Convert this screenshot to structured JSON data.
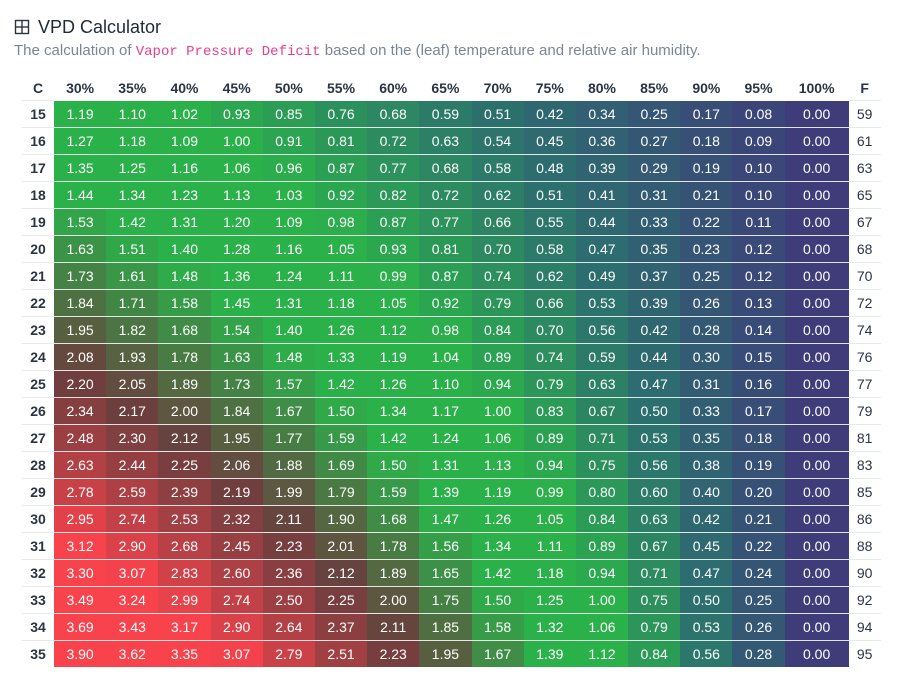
{
  "header": {
    "title": "VPD Calculator",
    "subtitle_before": "The calculation of ",
    "subtitle_code": "Vapor Pressure Deficit",
    "subtitle_after": " based on the (leaf) temperature and relative air humidity.",
    "icon": "grid-icon"
  },
  "table": {
    "corner_left": "C",
    "corner_right": "F",
    "humidity": [
      "30%",
      "35%",
      "40%",
      "45%",
      "50%",
      "55%",
      "60%",
      "65%",
      "70%",
      "75%",
      "80%",
      "85%",
      "90%",
      "95%",
      "100%"
    ],
    "rows": [
      {
        "c": "15",
        "f": "59",
        "v": [
          "1.19",
          "1.10",
          "1.02",
          "0.93",
          "0.85",
          "0.76",
          "0.68",
          "0.59",
          "0.51",
          "0.42",
          "0.34",
          "0.25",
          "0.17",
          "0.08",
          "0.00"
        ]
      },
      {
        "c": "16",
        "f": "61",
        "v": [
          "1.27",
          "1.18",
          "1.09",
          "1.00",
          "0.91",
          "0.81",
          "0.72",
          "0.63",
          "0.54",
          "0.45",
          "0.36",
          "0.27",
          "0.18",
          "0.09",
          "0.00"
        ]
      },
      {
        "c": "17",
        "f": "63",
        "v": [
          "1.35",
          "1.25",
          "1.16",
          "1.06",
          "0.96",
          "0.87",
          "0.77",
          "0.68",
          "0.58",
          "0.48",
          "0.39",
          "0.29",
          "0.19",
          "0.10",
          "0.00"
        ]
      },
      {
        "c": "18",
        "f": "65",
        "v": [
          "1.44",
          "1.34",
          "1.23",
          "1.13",
          "1.03",
          "0.92",
          "0.82",
          "0.72",
          "0.62",
          "0.51",
          "0.41",
          "0.31",
          "0.21",
          "0.10",
          "0.00"
        ]
      },
      {
        "c": "19",
        "f": "67",
        "v": [
          "1.53",
          "1.42",
          "1.31",
          "1.20",
          "1.09",
          "0.98",
          "0.87",
          "0.77",
          "0.66",
          "0.55",
          "0.44",
          "0.33",
          "0.22",
          "0.11",
          "0.00"
        ]
      },
      {
        "c": "20",
        "f": "68",
        "v": [
          "1.63",
          "1.51",
          "1.40",
          "1.28",
          "1.16",
          "1.05",
          "0.93",
          "0.81",
          "0.70",
          "0.58",
          "0.47",
          "0.35",
          "0.23",
          "0.12",
          "0.00"
        ]
      },
      {
        "c": "21",
        "f": "70",
        "v": [
          "1.73",
          "1.61",
          "1.48",
          "1.36",
          "1.24",
          "1.11",
          "0.99",
          "0.87",
          "0.74",
          "0.62",
          "0.49",
          "0.37",
          "0.25",
          "0.12",
          "0.00"
        ]
      },
      {
        "c": "22",
        "f": "72",
        "v": [
          "1.84",
          "1.71",
          "1.58",
          "1.45",
          "1.31",
          "1.18",
          "1.05",
          "0.92",
          "0.79",
          "0.66",
          "0.53",
          "0.39",
          "0.26",
          "0.13",
          "0.00"
        ]
      },
      {
        "c": "23",
        "f": "74",
        "v": [
          "1.95",
          "1.82",
          "1.68",
          "1.54",
          "1.40",
          "1.26",
          "1.12",
          "0.98",
          "0.84",
          "0.70",
          "0.56",
          "0.42",
          "0.28",
          "0.14",
          "0.00"
        ]
      },
      {
        "c": "24",
        "f": "76",
        "v": [
          "2.08",
          "1.93",
          "1.78",
          "1.63",
          "1.48",
          "1.33",
          "1.19",
          "1.04",
          "0.89",
          "0.74",
          "0.59",
          "0.44",
          "0.30",
          "0.15",
          "0.00"
        ]
      },
      {
        "c": "25",
        "f": "77",
        "v": [
          "2.20",
          "2.05",
          "1.89",
          "1.73",
          "1.57",
          "1.42",
          "1.26",
          "1.10",
          "0.94",
          "0.79",
          "0.63",
          "0.47",
          "0.31",
          "0.16",
          "0.00"
        ]
      },
      {
        "c": "26",
        "f": "79",
        "v": [
          "2.34",
          "2.17",
          "2.00",
          "1.84",
          "1.67",
          "1.50",
          "1.34",
          "1.17",
          "1.00",
          "0.83",
          "0.67",
          "0.50",
          "0.33",
          "0.17",
          "0.00"
        ]
      },
      {
        "c": "27",
        "f": "81",
        "v": [
          "2.48",
          "2.30",
          "2.12",
          "1.95",
          "1.77",
          "1.59",
          "1.42",
          "1.24",
          "1.06",
          "0.89",
          "0.71",
          "0.53",
          "0.35",
          "0.18",
          "0.00"
        ]
      },
      {
        "c": "28",
        "f": "83",
        "v": [
          "2.63",
          "2.44",
          "2.25",
          "2.06",
          "1.88",
          "1.69",
          "1.50",
          "1.31",
          "1.13",
          "0.94",
          "0.75",
          "0.56",
          "0.38",
          "0.19",
          "0.00"
        ]
      },
      {
        "c": "29",
        "f": "85",
        "v": [
          "2.78",
          "2.59",
          "2.39",
          "2.19",
          "1.99",
          "1.79",
          "1.59",
          "1.39",
          "1.19",
          "0.99",
          "0.80",
          "0.60",
          "0.40",
          "0.20",
          "0.00"
        ]
      },
      {
        "c": "30",
        "f": "86",
        "v": [
          "2.95",
          "2.74",
          "2.53",
          "2.32",
          "2.11",
          "1.90",
          "1.68",
          "1.47",
          "1.26",
          "1.05",
          "0.84",
          "0.63",
          "0.42",
          "0.21",
          "0.00"
        ]
      },
      {
        "c": "31",
        "f": "88",
        "v": [
          "3.12",
          "2.90",
          "2.68",
          "2.45",
          "2.23",
          "2.01",
          "1.78",
          "1.56",
          "1.34",
          "1.11",
          "0.89",
          "0.67",
          "0.45",
          "0.22",
          "0.00"
        ]
      },
      {
        "c": "32",
        "f": "90",
        "v": [
          "3.30",
          "3.07",
          "2.83",
          "2.60",
          "2.36",
          "2.12",
          "1.89",
          "1.65",
          "1.42",
          "1.18",
          "0.94",
          "0.71",
          "0.47",
          "0.24",
          "0.00"
        ]
      },
      {
        "c": "33",
        "f": "92",
        "v": [
          "3.49",
          "3.24",
          "2.99",
          "2.74",
          "2.50",
          "2.25",
          "2.00",
          "1.75",
          "1.50",
          "1.25",
          "1.00",
          "0.75",
          "0.50",
          "0.25",
          "0.00"
        ]
      },
      {
        "c": "34",
        "f": "94",
        "v": [
          "3.69",
          "3.43",
          "3.17",
          "2.90",
          "2.64",
          "2.37",
          "2.11",
          "1.85",
          "1.58",
          "1.32",
          "1.06",
          "0.79",
          "0.53",
          "0.26",
          "0.00"
        ]
      },
      {
        "c": "35",
        "f": "95",
        "v": [
          "3.90",
          "3.62",
          "3.35",
          "3.07",
          "2.79",
          "2.51",
          "2.23",
          "1.95",
          "1.67",
          "1.39",
          "1.12",
          "0.84",
          "0.56",
          "0.28",
          "0.00"
        ]
      }
    ]
  },
  "colors": {
    "red": "#f8424c",
    "brown": "#6a3e3e",
    "green": "#2bb14a",
    "teal": "#2c6f6f",
    "navy": "#3e3d7a"
  }
}
